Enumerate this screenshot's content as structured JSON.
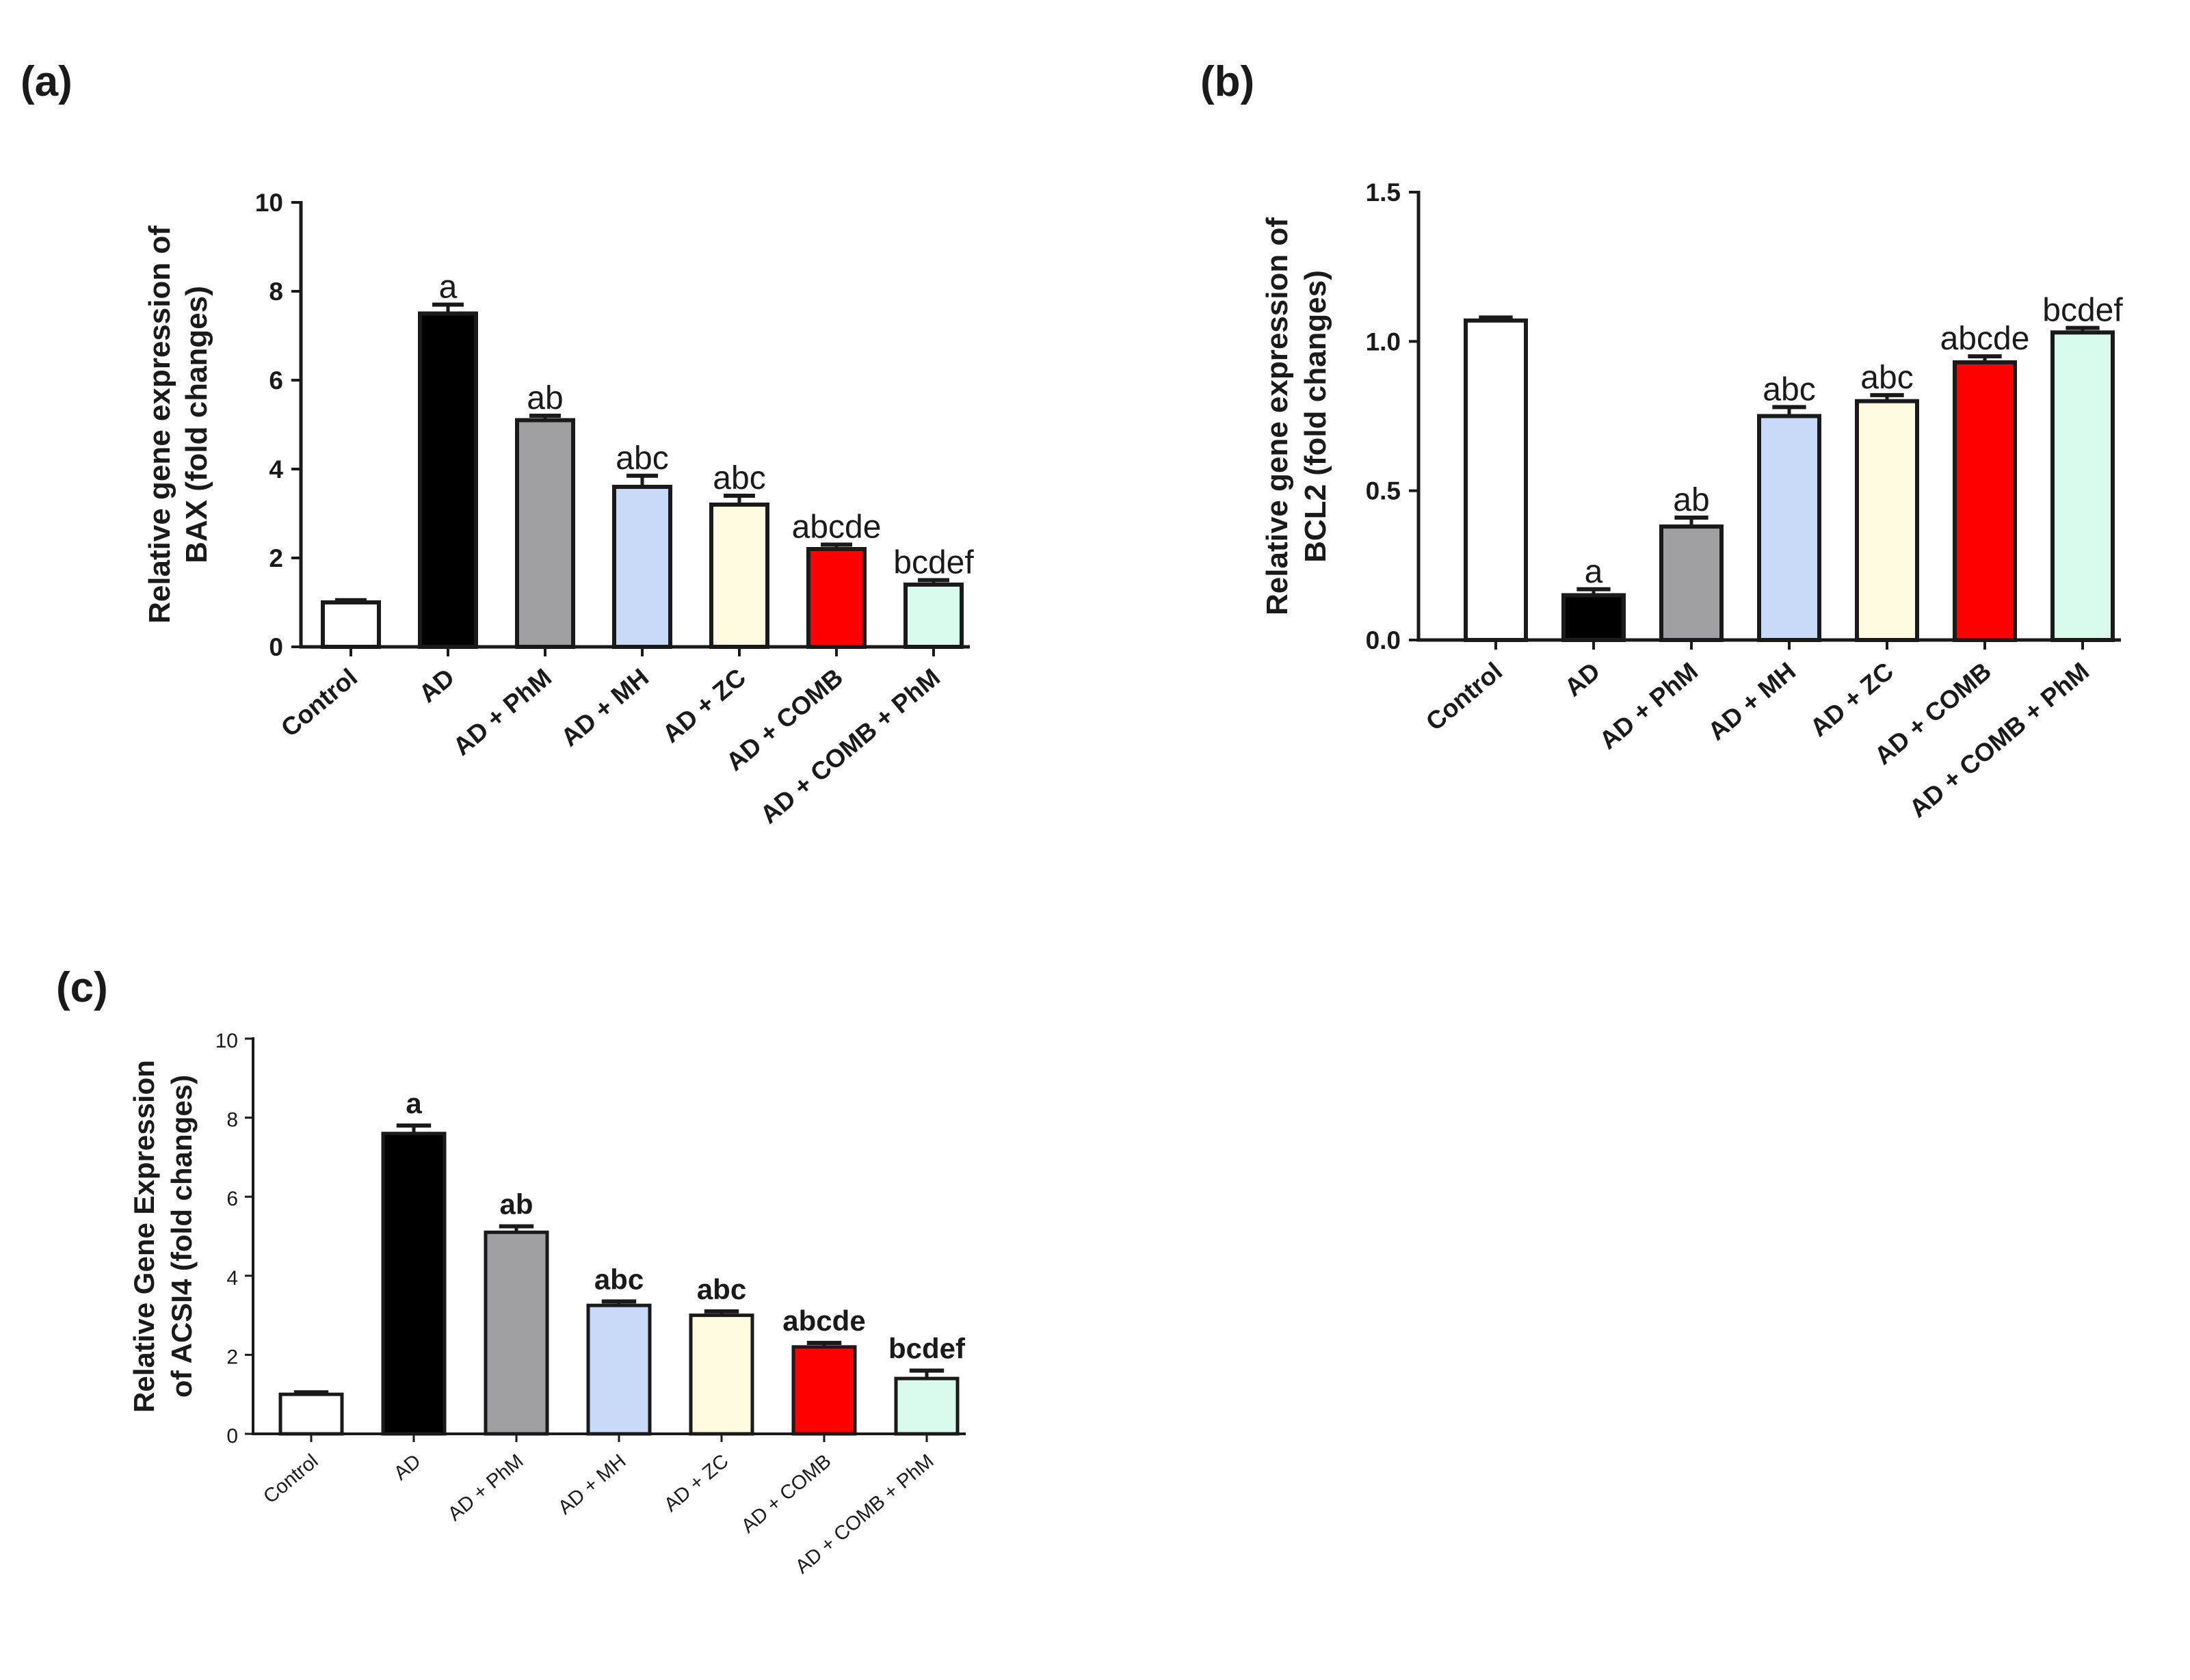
{
  "chart_data": [
    {
      "id": "a",
      "type": "bar",
      "panel_label": "(a)",
      "title": "",
      "ylabel_line1": "Relative gene expression of",
      "ylabel_line2": "BAX (fold changes)",
      "xlabel": "",
      "ylim": [
        0,
        10
      ],
      "yticks": [
        "0",
        "2",
        "4",
        "6",
        "8",
        "10"
      ],
      "categories": [
        "Control",
        "AD",
        "AD + PhM",
        "AD + MH",
        "AD + ZC",
        "AD + COMB",
        "AD + COMB + PhM"
      ],
      "values": [
        1.0,
        7.5,
        5.1,
        3.6,
        3.2,
        2.2,
        1.4
      ],
      "errors": [
        0.05,
        0.2,
        0.1,
        0.25,
        0.2,
        0.1,
        0.1
      ],
      "significance": [
        "",
        "a",
        "ab",
        "abc",
        "abc",
        "abcde",
        "bcdef"
      ],
      "colors": [
        "#ffffff",
        "#000000",
        "#a0a0a2",
        "#c9daf8",
        "#fffbe0",
        "#ff0000",
        "#d9fbee"
      ],
      "grid": false,
      "legend": "none"
    },
    {
      "id": "b",
      "type": "bar",
      "panel_label": "(b)",
      "title": "",
      "ylabel_line1": "Relative gene expression of",
      "ylabel_line2": "BCL2 (fold changes)",
      "xlabel": "",
      "ylim": [
        0,
        1.5
      ],
      "yticks": [
        "0.0",
        "0.5",
        "1.0",
        "1.5"
      ],
      "categories": [
        "Control",
        "AD",
        "AD + PhM",
        "AD + MH",
        "AD + ZC",
        "AD + COMB",
        "AD + COMB + PhM"
      ],
      "values": [
        1.07,
        0.15,
        0.38,
        0.75,
        0.8,
        0.93,
        1.03
      ],
      "errors": [
        0.01,
        0.02,
        0.03,
        0.03,
        0.02,
        0.02,
        0.015
      ],
      "significance": [
        "",
        "a",
        "ab",
        "abc",
        "abc",
        "abcde",
        "bcdef"
      ],
      "colors": [
        "#ffffff",
        "#000000",
        "#a0a0a2",
        "#c9daf8",
        "#fffbe0",
        "#ff0000",
        "#d9fbee"
      ],
      "grid": false,
      "legend": "none"
    },
    {
      "id": "c",
      "type": "bar",
      "panel_label": "(c)",
      "title": "",
      "ylabel_line1": "Relative Gene Expression",
      "ylabel_line2": "of ACSI4 (fold changes)",
      "xlabel": "",
      "ylim": [
        0,
        10
      ],
      "yticks": [
        "0",
        "2",
        "4",
        "6",
        "8",
        "10"
      ],
      "categories": [
        "Control",
        "AD",
        "AD + PhM",
        "AD + MH",
        "AD + ZC",
        "AD + COMB",
        "AD + COMB + PhM"
      ],
      "values": [
        1.0,
        7.6,
        5.1,
        3.25,
        3.0,
        2.2,
        1.4
      ],
      "errors": [
        0.05,
        0.2,
        0.15,
        0.1,
        0.1,
        0.1,
        0.2
      ],
      "significance": [
        "",
        "a",
        "ab",
        "abc",
        "abc",
        "abcde",
        "bcdef"
      ],
      "colors": [
        "#ffffff",
        "#000000",
        "#a0a0a2",
        "#c9daf8",
        "#fffbe0",
        "#ff0000",
        "#d9fbee"
      ],
      "grid": false,
      "legend": "none"
    }
  ]
}
